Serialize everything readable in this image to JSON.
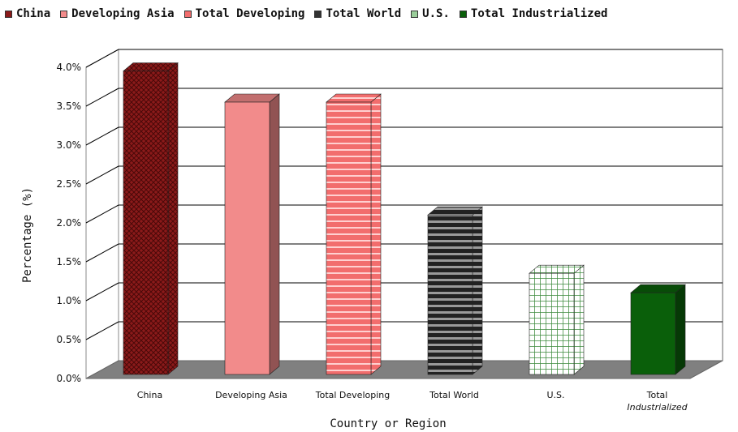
{
  "chart_data": {
    "type": "bar",
    "categories": [
      "China",
      "Developing Asia",
      "Total Developing",
      "Total World",
      "U.S.",
      "Total Industrialized"
    ],
    "values": [
      3.9,
      3.5,
      3.5,
      2.05,
      1.3,
      1.05
    ],
    "legend": [
      "China",
      "Developing Asia",
      "Total Developing",
      "Total World",
      "U.S.",
      "Total Industrialized"
    ],
    "colors": [
      "#8b1a1a",
      "#f28b8b",
      "#f26d6d",
      "#333333",
      "#9acd9a",
      "#0a5f0a"
    ],
    "patterns": [
      "crosshatch",
      "solid",
      "hstripe",
      "hstripe-dark",
      "grid",
      "solid"
    ],
    "xlabel": "Country or Region",
    "ylabel": "Percentage (%)",
    "yticks": [
      "0.0%",
      "0.5%",
      "1.0%",
      "1.5%",
      "2.0%",
      "2.5%",
      "3.0%",
      "3.5%",
      "4.0%"
    ],
    "ylim": [
      0,
      4.0
    ],
    "legend_position": "top",
    "grid": true
  }
}
